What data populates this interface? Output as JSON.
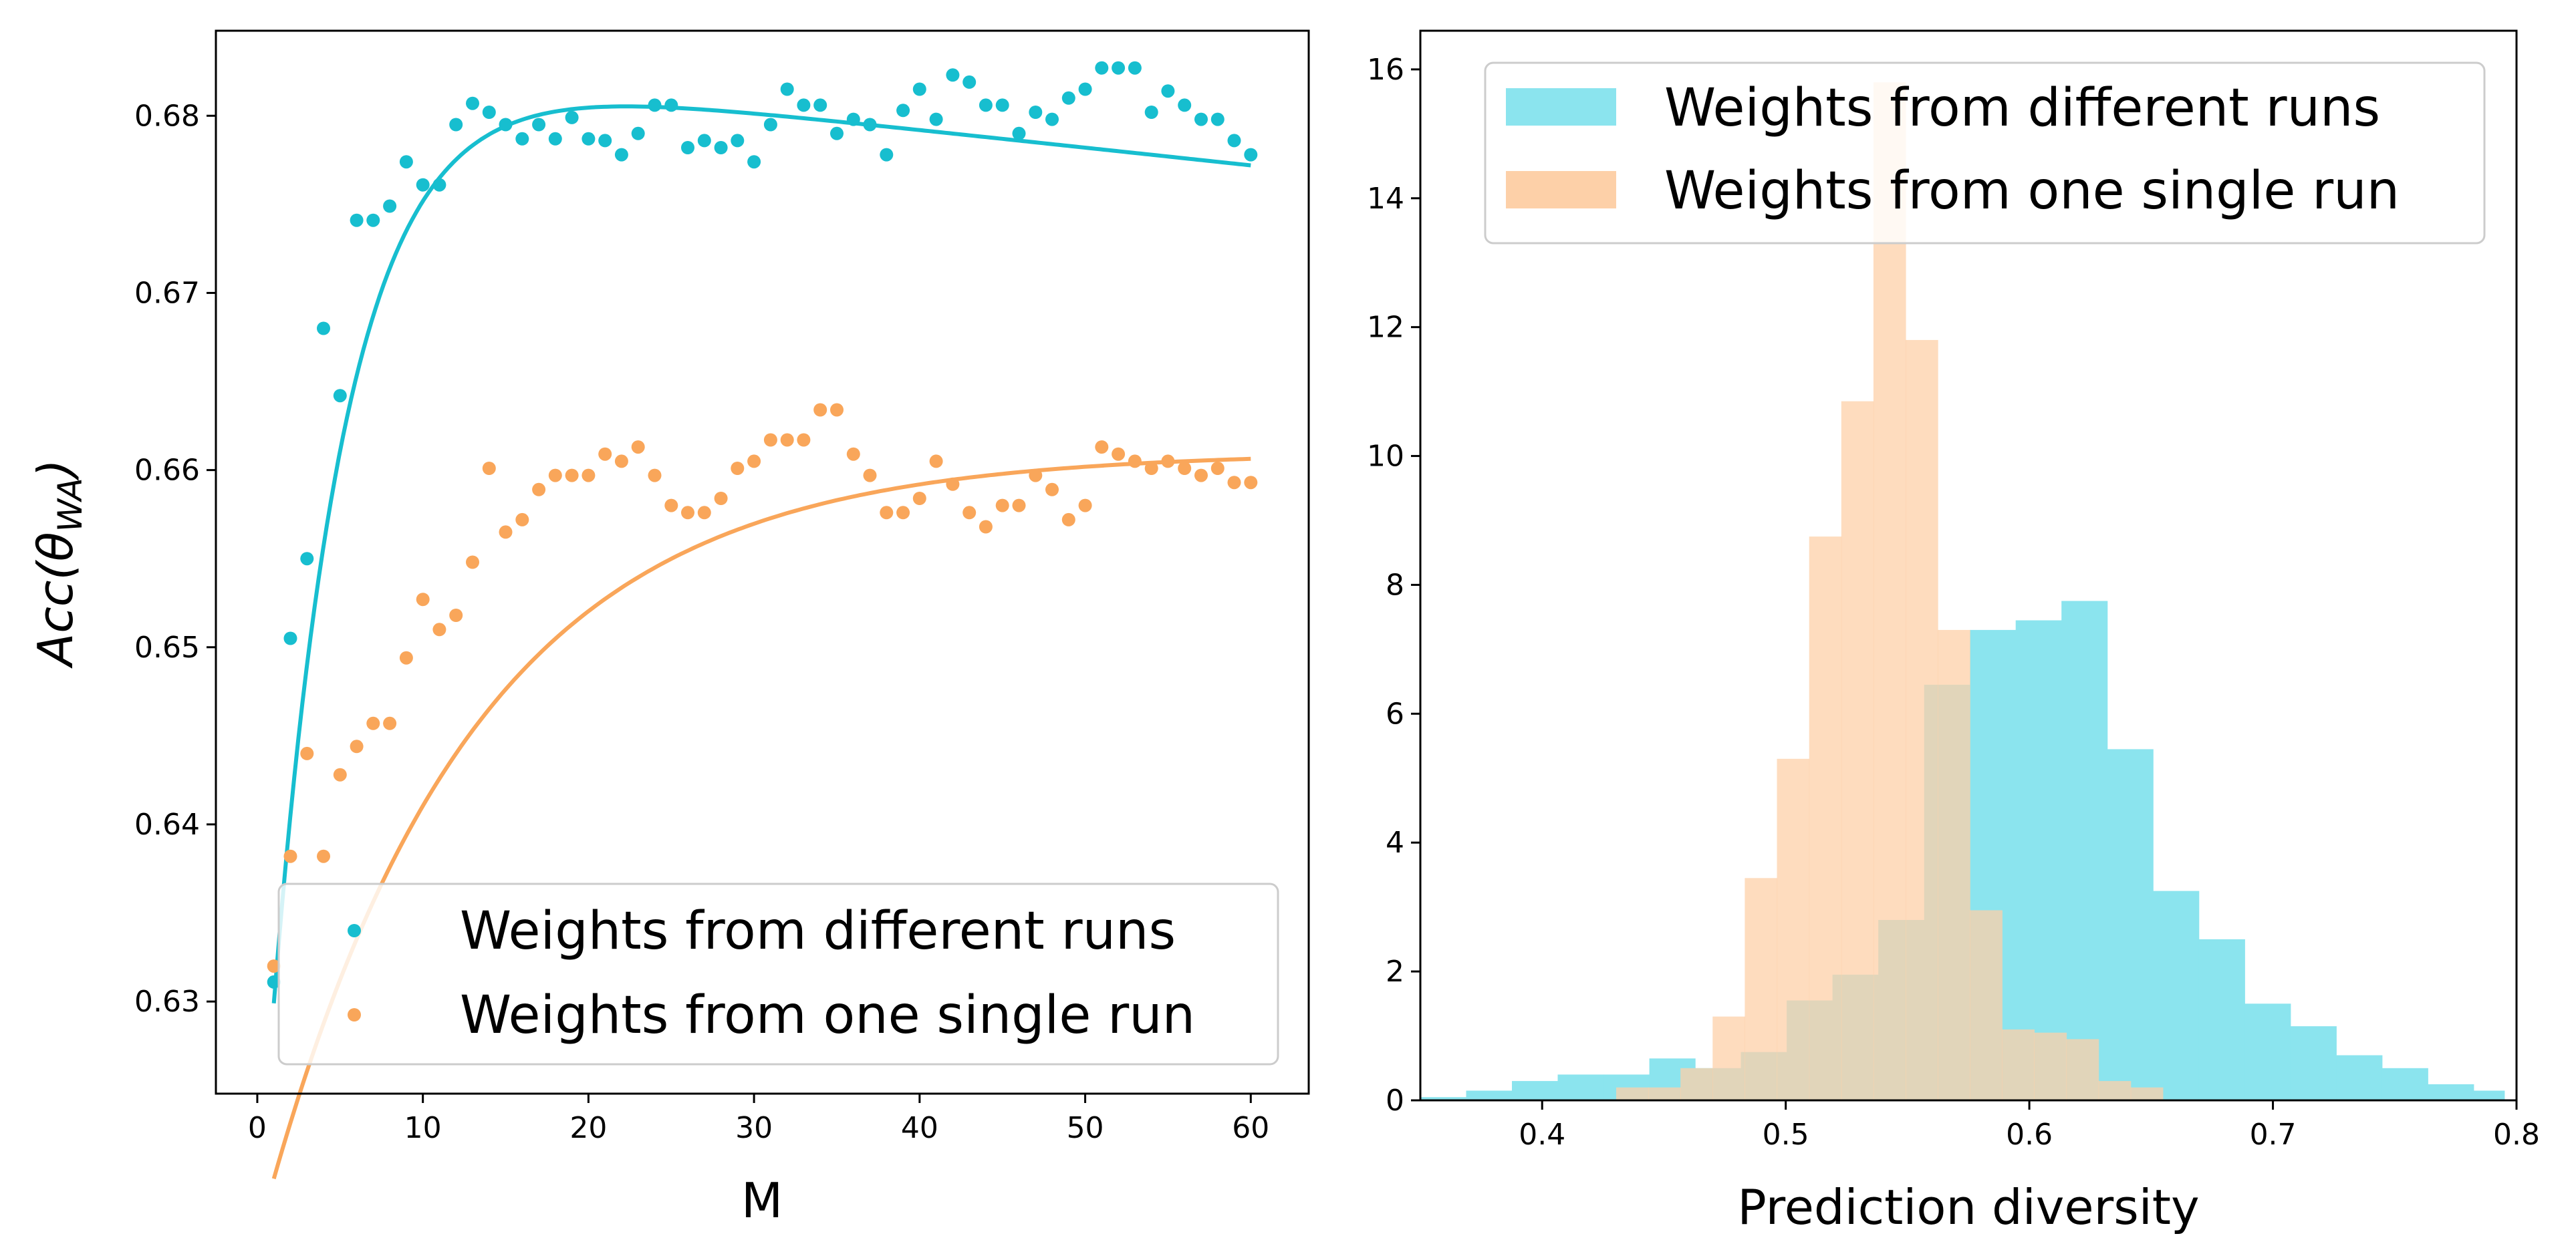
{
  "chart_data": [
    {
      "type": "scatter",
      "xlabel": "M",
      "ylabel": "Acc(θ_WA)",
      "xlim": [
        -2.5,
        63.5
      ],
      "ylim": [
        0.6248,
        0.6848
      ],
      "xticks": [
        0,
        10,
        20,
        30,
        40,
        50,
        60
      ],
      "yticks": [
        0.63,
        0.64,
        0.65,
        0.66,
        0.67,
        0.68
      ],
      "ytick_labels": [
        "0.63",
        "0.64",
        "0.65",
        "0.66",
        "0.67",
        "0.68"
      ],
      "grid": false,
      "legend_position": "lower-right",
      "series": [
        {
          "name": "Weights from different runs",
          "color": "#17becf",
          "x": [
            1,
            2,
            3,
            4,
            5,
            6,
            7,
            8,
            9,
            10,
            11,
            12,
            13,
            14,
            15,
            16,
            17,
            18,
            19,
            20,
            21,
            22,
            23,
            24,
            25,
            26,
            27,
            28,
            29,
            30,
            31,
            32,
            33,
            34,
            35,
            36,
            37,
            38,
            39,
            40,
            41,
            42,
            43,
            44,
            45,
            46,
            47,
            48,
            49,
            50,
            51,
            52,
            53,
            54,
            55,
            56,
            57,
            58,
            59,
            60
          ],
          "y": [
            0.6311,
            0.6505,
            0.655,
            0.668,
            0.6642,
            0.6741,
            0.6741,
            0.6749,
            0.6774,
            0.6761,
            0.6761,
            0.6795,
            0.6807,
            0.6802,
            0.6795,
            0.6787,
            0.6795,
            0.6787,
            0.6799,
            0.6787,
            0.6786,
            0.6778,
            0.679,
            0.6806,
            0.6806,
            0.6782,
            0.6786,
            0.6782,
            0.6786,
            0.6774,
            0.6795,
            0.6815,
            0.6806,
            0.6806,
            0.679,
            0.6798,
            0.6795,
            0.6778,
            0.6803,
            0.6815,
            0.6798,
            0.6823,
            0.6819,
            0.6806,
            0.6806,
            0.679,
            0.6802,
            0.6798,
            0.681,
            0.6815,
            0.6827,
            0.6827,
            0.6827,
            0.6802,
            0.6814,
            0.6806,
            0.6798,
            0.6798,
            0.6786,
            0.6778
          ],
          "fit": {
            "a": 0.63,
            "b": 0.0532,
            "c": 0.0001,
            "k": 0.225,
            "x0": 1,
            "x1": 60
          }
        },
        {
          "name": "Weights from one single run",
          "color": "#f9a65a",
          "x": [
            1,
            2,
            3,
            4,
            5,
            6,
            7,
            8,
            9,
            10,
            11,
            12,
            13,
            14,
            15,
            16,
            17,
            18,
            19,
            20,
            21,
            22,
            23,
            24,
            25,
            26,
            27,
            28,
            29,
            30,
            31,
            32,
            33,
            34,
            35,
            36,
            37,
            38,
            39,
            40,
            41,
            42,
            43,
            44,
            45,
            46,
            47,
            48,
            49,
            50,
            51,
            52,
            53,
            54,
            55,
            56,
            57,
            58,
            59,
            60
          ],
          "y": [
            0.632,
            0.6382,
            0.644,
            0.6382,
            0.6428,
            0.6444,
            0.6457,
            0.6457,
            0.6494,
            0.6527,
            0.651,
            0.6518,
            0.6548,
            0.6601,
            0.6565,
            0.6572,
            0.6589,
            0.6597,
            0.6597,
            0.6597,
            0.6609,
            0.6605,
            0.6613,
            0.6597,
            0.658,
            0.6576,
            0.6576,
            0.6584,
            0.6601,
            0.6605,
            0.6617,
            0.6617,
            0.6617,
            0.6634,
            0.6634,
            0.6609,
            0.6597,
            0.6576,
            0.6576,
            0.6584,
            0.6605,
            0.6592,
            0.6576,
            0.6568,
            0.658,
            0.658,
            0.6597,
            0.6589,
            0.6572,
            0.658,
            0.6613,
            0.6609,
            0.6605,
            0.6601,
            0.6605,
            0.6601,
            0.6597,
            0.6601,
            0.6593,
            0.6593
          ],
          "fit": {
            "a": 0.62,
            "b": 0.041,
            "k": 0.08,
            "x0": 1,
            "x1": 60
          }
        }
      ]
    },
    {
      "type": "histogram",
      "xlabel": "Prediction diversity",
      "ylabel": "",
      "xlim": [
        0.35,
        0.8
      ],
      "ylim": [
        0,
        16.6
      ],
      "xticks": [
        0.4,
        0.5,
        0.6,
        0.7,
        0.8
      ],
      "xtick_labels": [
        "0.4",
        "0.5",
        "0.6",
        "0.7",
        "0.8"
      ],
      "yticks": [
        0,
        2,
        4,
        6,
        8,
        10,
        12,
        14,
        16
      ],
      "grid": false,
      "legend_position": "upper-right",
      "series": [
        {
          "name": "Weights from different runs",
          "color": "#8be4ee",
          "bin_edges": [
            0.35,
            0.3688,
            0.3876,
            0.4064,
            0.4252,
            0.444,
            0.4628,
            0.4816,
            0.5004,
            0.5192,
            0.538,
            0.5568,
            0.5756,
            0.5944,
            0.6132,
            0.632,
            0.6508,
            0.6696,
            0.6884,
            0.7072,
            0.726,
            0.7448,
            0.7636,
            0.7824,
            0.795
          ],
          "values": [
            0.05,
            0.15,
            0.3,
            0.4,
            0.4,
            0.65,
            0.5,
            0.75,
            1.55,
            1.95,
            2.8,
            6.45,
            7.3,
            7.45,
            7.75,
            5.45,
            3.25,
            2.5,
            1.5,
            1.15,
            0.7,
            0.5,
            0.25,
            0.15
          ]
        },
        {
          "name": "Weights from one single run",
          "color": "#fdd0a8",
          "bin_edges": [
            0.4304,
            0.4436,
            0.4568,
            0.47,
            0.4832,
            0.4964,
            0.5096,
            0.5228,
            0.536,
            0.5492,
            0.5624,
            0.5756,
            0.5888,
            0.602,
            0.6152,
            0.6284,
            0.6416,
            0.6548
          ],
          "values": [
            0.2,
            0.2,
            0.5,
            1.3,
            3.45,
            5.3,
            8.75,
            10.85,
            15.8,
            11.8,
            7.3,
            2.95,
            1.1,
            1.05,
            0.95,
            0.3,
            0.2
          ]
        }
      ]
    }
  ]
}
